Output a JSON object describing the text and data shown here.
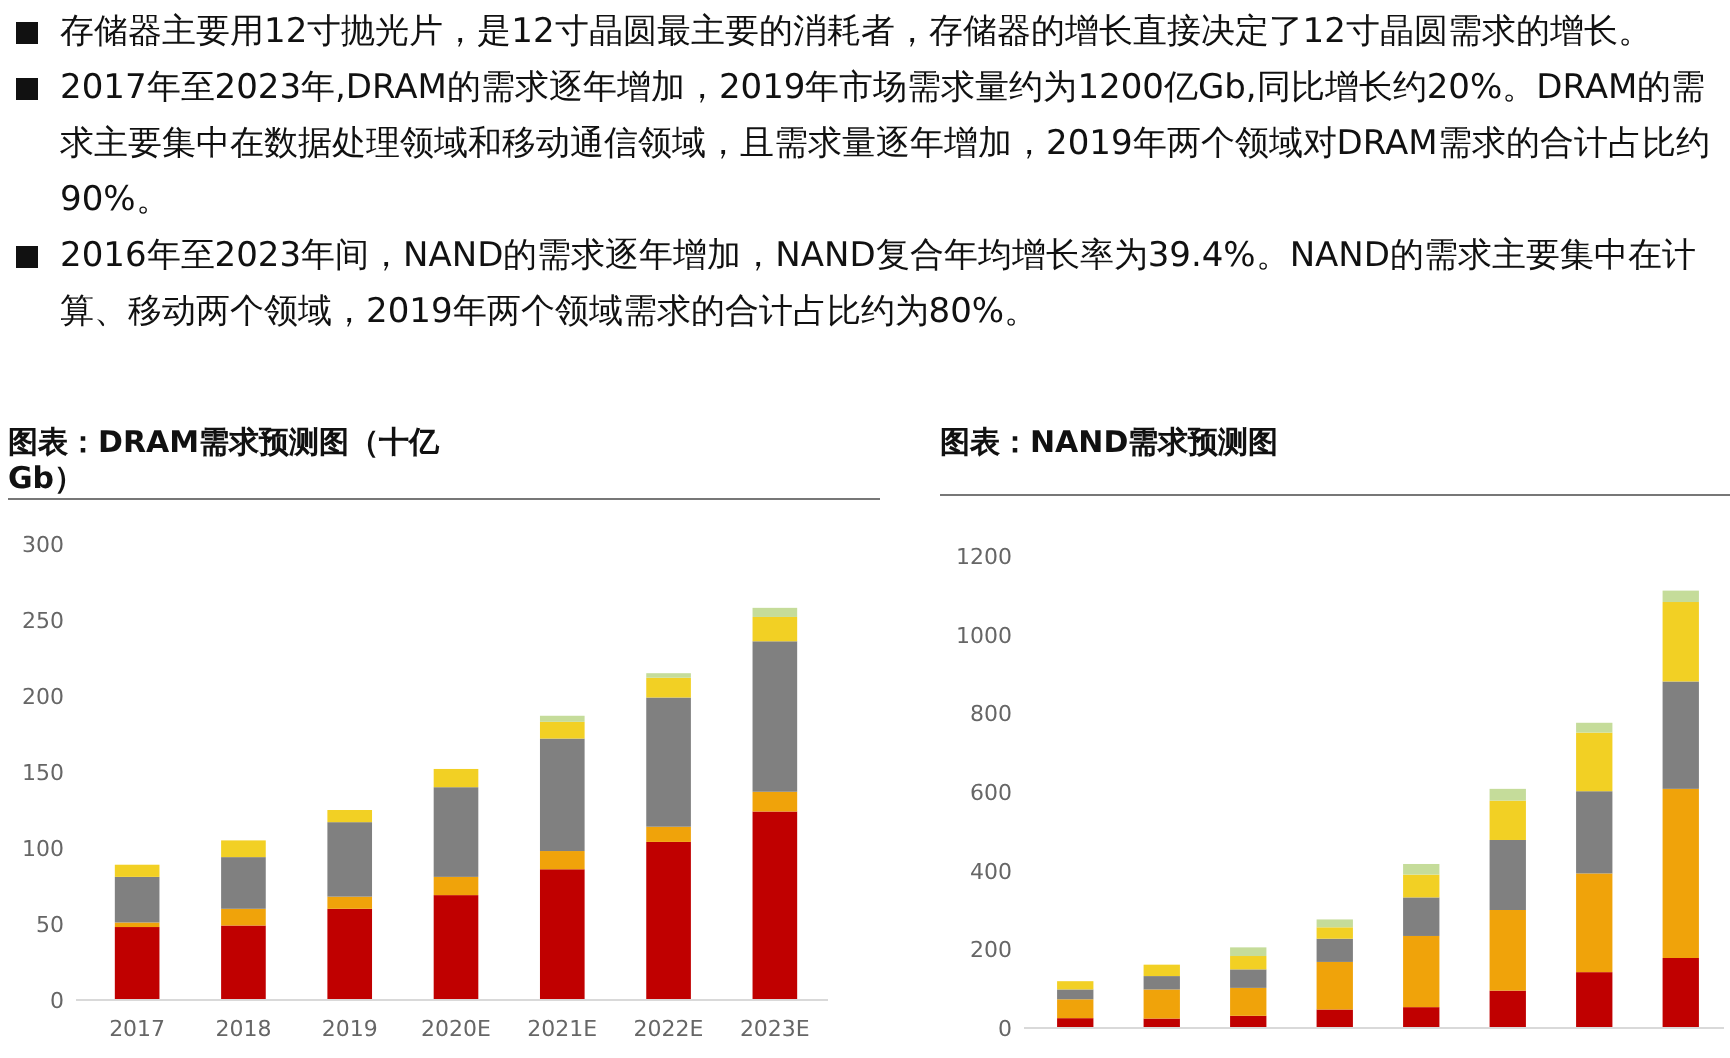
{
  "chart_data": [
    {
      "type": "bar",
      "title": "图表：DRAM需求预测图（十亿Gb）",
      "stacked": true,
      "annotations": [
        "存储器主要用12寸抛光片，是12寸晶圆最主要的消耗者，存储器的增长直接决定了12寸晶圆需求的增长。",
        "2017年至2023年,DRAM的需求逐年增加，2019年市场需求量约为1200亿Gb,同比增长约20%。DRAM的需求主要集中在数据处理领域和移动通信领域，且需求量逐年增加，2019年两个领域对DRAM需求的合计占比约90%。",
        "2016年至2023年间，NAND的需求逐年增加，NAND复合年均增长率为39.4%。NAND的需求主要集中在计算、移动两个领域，2019年两个领域需求的合计占比约为80%。"
      ],
      "categories": [
        "2017",
        "2018",
        "2019",
        "2020E",
        "2021E",
        "2022E",
        "2023E"
      ],
      "ylim": [
        0,
        300
      ],
      "yticks": [
        0,
        50,
        100,
        150,
        200,
        250,
        300
      ],
      "series": [
        {
          "color": "#c00000",
          "values": [
            48,
            49,
            60,
            69,
            86,
            104,
            124
          ]
        },
        {
          "color": "#f0a30a",
          "values": [
            3,
            11,
            8,
            12,
            12,
            10,
            13
          ]
        },
        {
          "color": "#808080",
          "values": [
            30,
            34,
            49,
            59,
            74,
            85,
            99
          ]
        },
        {
          "color": "#f2d024",
          "values": [
            8,
            11,
            8,
            12,
            11,
            13,
            16
          ]
        },
        {
          "color": "#c5dc9a",
          "values": [
            0,
            0,
            0,
            0,
            4,
            3,
            6
          ]
        }
      ]
    },
    {
      "type": "bar",
      "title": "图表：NAND需求预测图",
      "stacked": true,
      "tick_labels": "y",
      "categories": [
        null,
        null,
        null,
        null,
        null,
        null,
        null,
        null
      ],
      "ylim": [
        0,
        1200
      ],
      "yticks": [
        0,
        200,
        400,
        600,
        800,
        1000,
        1200
      ],
      "series": [
        {
          "color": "#c00000",
          "values": [
            25,
            24,
            31,
            47,
            53,
            95,
            142,
            178
          ]
        },
        {
          "color": "#f0a30a",
          "values": [
            48,
            74,
            71,
            121,
            181,
            205,
            251,
            430
          ]
        },
        {
          "color": "#808080",
          "values": [
            25,
            34,
            47,
            59,
            98,
            178,
            209,
            273
          ]
        },
        {
          "color": "#f2d024",
          "values": [
            21,
            29,
            34,
            29,
            58,
            100,
            149,
            202
          ]
        },
        {
          "color": "#c5dc9a",
          "values": [
            0,
            0,
            22,
            20,
            27,
            30,
            25,
            29
          ]
        }
      ]
    }
  ]
}
